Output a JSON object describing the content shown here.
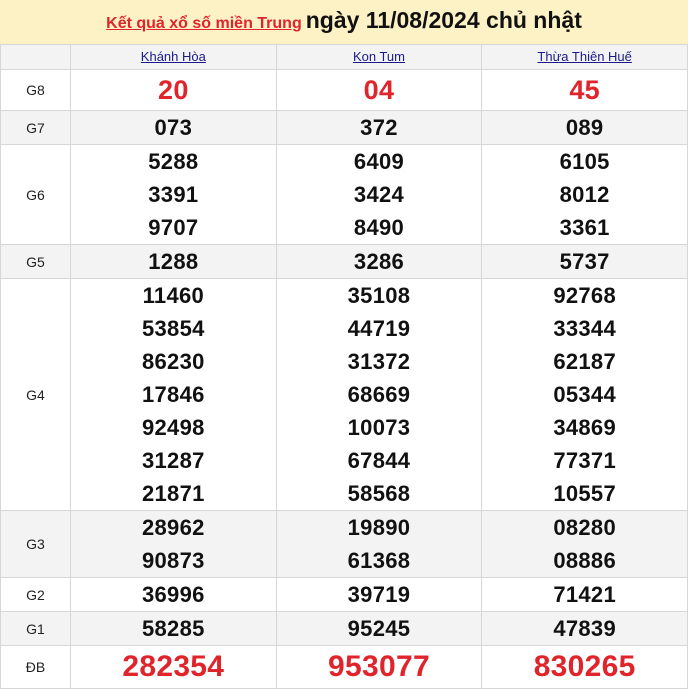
{
  "header": {
    "link": "Kết quả xổ số miền Trung",
    "date": "ngày 11/08/2024 chủ nhật"
  },
  "provinces": [
    "Khánh Hòa",
    "Kon Tum",
    "Thừa Thiên Huế"
  ],
  "colors": {
    "accent": "#e0242b",
    "header_bg": "#fdf1c6"
  },
  "prizes": [
    {
      "label": "G8",
      "values": [
        [
          "20"
        ],
        [
          "04"
        ],
        [
          "45"
        ]
      ]
    },
    {
      "label": "G7",
      "values": [
        [
          "073"
        ],
        [
          "372"
        ],
        [
          "089"
        ]
      ]
    },
    {
      "label": "G6",
      "values": [
        [
          "5288",
          "3391",
          "9707"
        ],
        [
          "6409",
          "3424",
          "8490"
        ],
        [
          "6105",
          "8012",
          "3361"
        ]
      ]
    },
    {
      "label": "G5",
      "values": [
        [
          "1288"
        ],
        [
          "3286"
        ],
        [
          "5737"
        ]
      ]
    },
    {
      "label": "G4",
      "values": [
        [
          "11460",
          "53854",
          "86230",
          "17846",
          "92498",
          "31287",
          "21871"
        ],
        [
          "35108",
          "44719",
          "31372",
          "68669",
          "10073",
          "67844",
          "58568"
        ],
        [
          "92768",
          "33344",
          "62187",
          "05344",
          "34869",
          "77371",
          "10557"
        ]
      ]
    },
    {
      "label": "G3",
      "values": [
        [
          "28962",
          "90873"
        ],
        [
          "19890",
          "61368"
        ],
        [
          "08280",
          "08886"
        ]
      ]
    },
    {
      "label": "G2",
      "values": [
        [
          "36996"
        ],
        [
          "39719"
        ],
        [
          "71421"
        ]
      ]
    },
    {
      "label": "G1",
      "values": [
        [
          "58285"
        ],
        [
          "95245"
        ],
        [
          "47839"
        ]
      ]
    },
    {
      "label": "ĐB",
      "values": [
        [
          "282354"
        ],
        [
          "953077"
        ],
        [
          "830265"
        ]
      ]
    }
  ]
}
